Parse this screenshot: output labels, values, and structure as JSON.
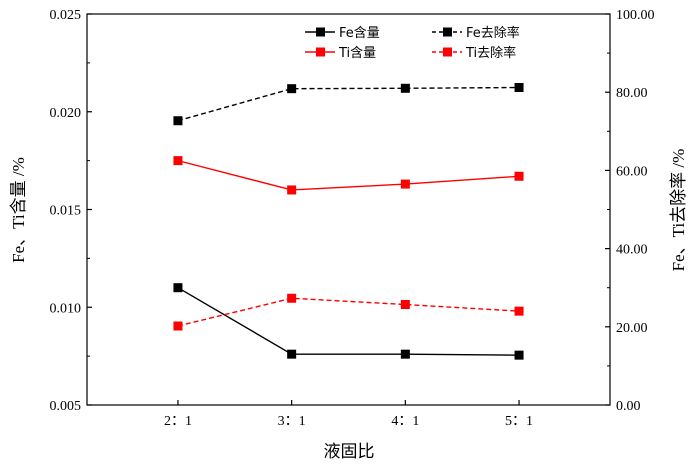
{
  "chart_data": {
    "type": "line",
    "categories": [
      "2：1",
      "3：1",
      "4：1",
      "5：1"
    ],
    "xlabel": "液固比",
    "ylabel_left": "Fe、Ti含量 /%",
    "ylabel_right": "Fe、Ti去除率 /%",
    "ylim_left": [
      0.005,
      0.025
    ],
    "ylim_right": [
      0,
      100
    ],
    "yticks_left": [
      "0.005",
      "0.010",
      "0.015",
      "0.020",
      "0.025"
    ],
    "yticks_right": [
      "0.00",
      "20.00",
      "40.00",
      "60.00",
      "80.00",
      "100.00"
    ],
    "grid": false,
    "legend_position": "top-right",
    "series": [
      {
        "name": "Fe含量",
        "axis": "left",
        "style": "solid",
        "color": "#000000",
        "values": [
          0.011,
          0.0076,
          0.0076,
          0.00755
        ]
      },
      {
        "name": "Fe去除率",
        "axis": "right",
        "style": "dashed",
        "color": "#000000",
        "values": [
          72.7,
          80.9,
          81.0,
          81.2
        ]
      },
      {
        "name": "Ti含量",
        "axis": "left",
        "style": "solid",
        "color": "#ff0000",
        "values": [
          0.0175,
          0.016,
          0.0163,
          0.0167
        ]
      },
      {
        "name": "Ti去除率",
        "axis": "right",
        "style": "dashed",
        "color": "#ff0000",
        "values": [
          20.2,
          27.3,
          25.7,
          24.0
        ]
      }
    ]
  }
}
